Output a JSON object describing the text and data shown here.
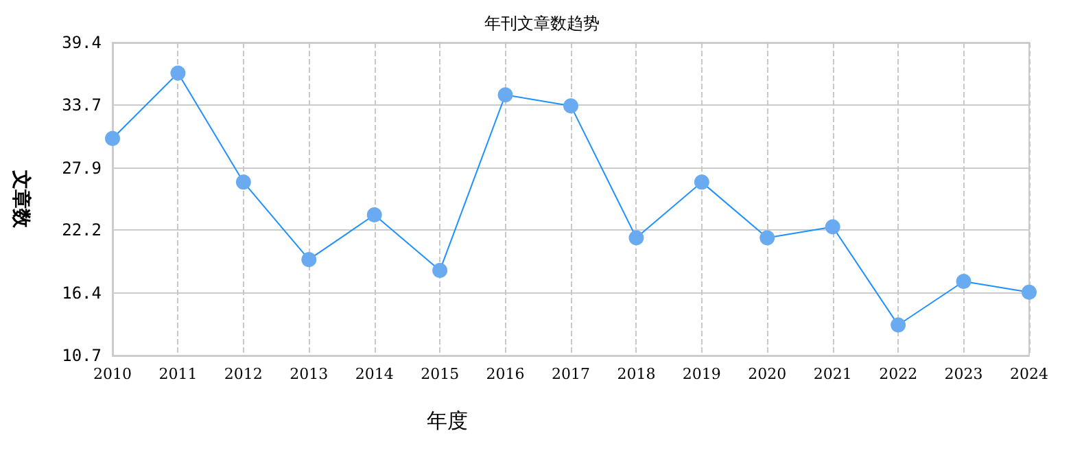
{
  "chart_data": {
    "type": "line",
    "title": "年刊文章数趋势",
    "xlabel": "年度",
    "ylabel": "文章数",
    "categories": [
      "2010",
      "2011",
      "2012",
      "2013",
      "2014",
      "2015",
      "2016",
      "2017",
      "2018",
      "2019",
      "2020",
      "2021",
      "2022",
      "2023",
      "2024"
    ],
    "series": [
      {
        "color": "#1e90ff",
        "values": [
          30.6,
          36.6,
          26.6,
          19.5,
          23.6,
          18.5,
          34.6,
          33.6,
          21.5,
          26.6,
          21.5,
          22.5,
          13.5,
          17.5,
          16.5
        ]
      }
    ],
    "ylim": [
      10.7,
      39.4
    ],
    "yticks": [
      10.7,
      16.4,
      22.2,
      27.9,
      33.7,
      39.4
    ],
    "grid": true,
    "marker": "circle",
    "line_style": "solid"
  }
}
